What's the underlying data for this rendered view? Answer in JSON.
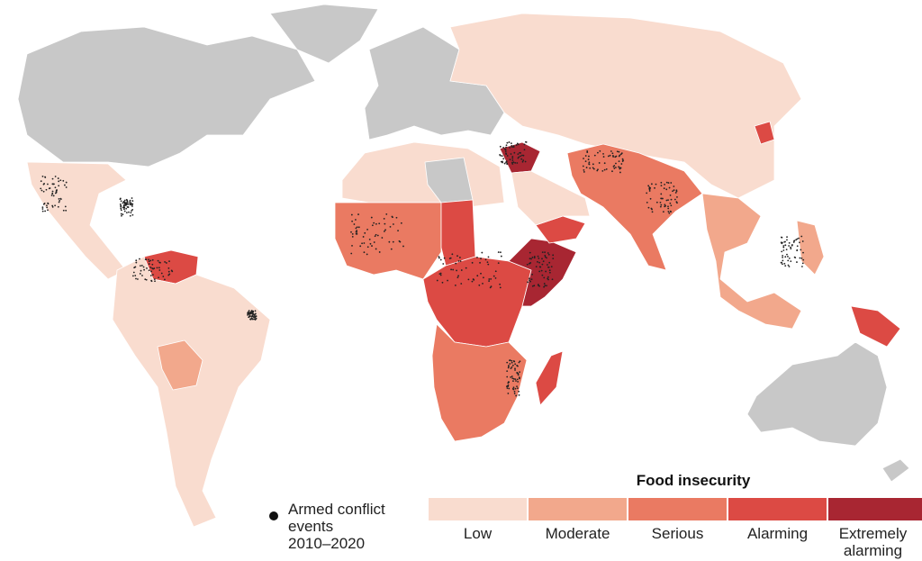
{
  "legend": {
    "title": "Food insecurity",
    "levels": [
      {
        "label": "Low",
        "color": "#f9dccf"
      },
      {
        "label": "Moderate",
        "color": "#f2a88c"
      },
      {
        "label": "Serious",
        "color": "#ea7a62"
      },
      {
        "label": "Alarming",
        "color": "#dc4a44"
      },
      {
        "label": "Extremely\nalarming",
        "color": "#a82632"
      }
    ],
    "no_data_color": "#c8c8c8",
    "conflict_label": "Armed conflict\nevents\n2010–2020"
  },
  "regions": [
    {
      "name": "North America",
      "level": "none"
    },
    {
      "name": "Greenland",
      "level": "none"
    },
    {
      "name": "Mexico and Central America",
      "level": "Low"
    },
    {
      "name": "Venezuela",
      "level": "Alarming"
    },
    {
      "name": "South America",
      "level": "Low"
    },
    {
      "name": "Bolivia",
      "level": "Moderate"
    },
    {
      "name": "Europe",
      "level": "none"
    },
    {
      "name": "Russia and East Asia",
      "level": "Low"
    },
    {
      "name": "North Africa",
      "level": "Low"
    },
    {
      "name": "Libya",
      "level": "none"
    },
    {
      "name": "Sahel and West Africa",
      "level": "Serious"
    },
    {
      "name": "Chad",
      "level": "Alarming"
    },
    {
      "name": "Central Africa",
      "level": "Alarming"
    },
    {
      "name": "Southern Africa",
      "level": "Serious"
    },
    {
      "name": "Horn of Africa",
      "level": "Extremely alarming"
    },
    {
      "name": "Yemen",
      "level": "Alarming"
    },
    {
      "name": "Middle East",
      "level": "Extremely alarming"
    },
    {
      "name": "Arabian Peninsula",
      "level": "Low"
    },
    {
      "name": "South Asia",
      "level": "Serious"
    },
    {
      "name": "Southeast Asia",
      "level": "Moderate"
    },
    {
      "name": "Papua New Guinea",
      "level": "Alarming"
    },
    {
      "name": "Madagascar",
      "level": "Alarming"
    },
    {
      "name": "North Korea",
      "level": "Alarming"
    },
    {
      "name": "Australia",
      "level": "none"
    },
    {
      "name": "New Zealand",
      "level": "none"
    }
  ]
}
